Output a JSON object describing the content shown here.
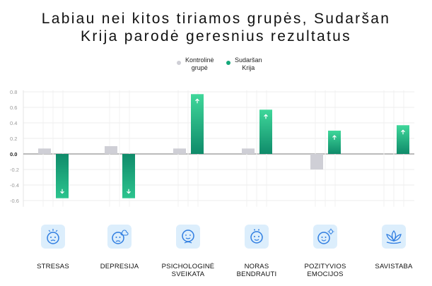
{
  "title": {
    "line1": "Labiau nei kitos tiriamos grupės, Sudaršan",
    "line2": "Krija parodė geresnius rezultatus"
  },
  "legend": [
    {
      "line1": "Kontrolinė",
      "line2": "grupė",
      "color": "#cfcfd6"
    },
    {
      "line1": "Sudaršan",
      "line2": "Krija",
      "color": "#14a87a"
    }
  ],
  "chart_data": {
    "type": "bar",
    "title": "Labiau nei kitos tiriamos grupės, Sudaršan Krija parodė geresnius rezultatus",
    "categories": [
      "STRESAS",
      "DEPRESIJA",
      "PSICHOLOGINĖ SVEIKATA",
      "NORAS BENDRAUTI",
      "POZITYVIOS EMOCIJOS",
      "SAVISTABA"
    ],
    "series": [
      {
        "name": "Kontrolinė grupė",
        "values": [
          0.07,
          0.1,
          0.07,
          0.07,
          -0.2,
          null
        ],
        "color": "#cfcfd6"
      },
      {
        "name": "Sudaršan Krija",
        "values": [
          -0.57,
          -0.57,
          0.77,
          0.57,
          0.3,
          0.37
        ],
        "color": "#14a87a"
      }
    ],
    "yticks": [
      "0.8",
      "0.6",
      "0.4",
      "0.2",
      "0.0",
      "-0.2",
      "-0.4",
      "-0.6"
    ],
    "ytick_values": [
      0.8,
      0.6,
      0.4,
      0.2,
      0.0,
      -0.2,
      -0.4,
      -0.6
    ],
    "ylim": [
      -0.7,
      0.85
    ],
    "grid": true,
    "legend_position": "top-center",
    "xlabel": "",
    "ylabel": ""
  },
  "categories": [
    {
      "line1": "STRESAS",
      "line2": "",
      "icon": "stressed-face-icon"
    },
    {
      "line1": "DEPRESIJA",
      "line2": "",
      "icon": "sad-face-cloud-icon"
    },
    {
      "line1": "PSICHOLOGINĖ",
      "line2": "SVEIKATA",
      "icon": "calm-face-icon"
    },
    {
      "line1": "NORAS",
      "line2": "BENDRAUTI",
      "icon": "friendly-face-icon"
    },
    {
      "line1": "POZITYVIOS",
      "line2": "EMOCIJOS",
      "icon": "happy-face-sun-icon"
    },
    {
      "line1": "SAVISTABA",
      "line2": "",
      "icon": "lotus-icon"
    }
  ]
}
